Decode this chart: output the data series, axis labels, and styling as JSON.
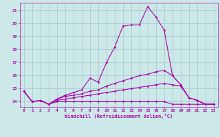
{
  "xlabel": "Windchill (Refroidissement éolien,°C)",
  "background_color": "#cce8e8",
  "grid_color": "#aacccc",
  "line_color": "#aa00aa",
  "x_ticks": [
    0,
    1,
    2,
    3,
    4,
    5,
    6,
    7,
    8,
    9,
    10,
    11,
    12,
    13,
    14,
    15,
    16,
    17,
    18,
    19,
    20,
    21,
    22,
    23
  ],
  "y_ticks": [
    14,
    15,
    16,
    17,
    18,
    19,
    20,
    21
  ],
  "ylim": [
    13.6,
    21.6
  ],
  "xlim": [
    -0.5,
    23.5
  ],
  "lines": [
    {
      "x": [
        0,
        1,
        2,
        3,
        4,
        5,
        6,
        7,
        8,
        9,
        10,
        11,
        12,
        13,
        14,
        15,
        16,
        17,
        18,
        19,
        20,
        21,
        22,
        23
      ],
      "y": [
        14.8,
        14.0,
        14.1,
        13.8,
        14.2,
        14.5,
        14.7,
        14.9,
        15.8,
        15.5,
        17.0,
        18.2,
        19.8,
        19.9,
        19.9,
        21.3,
        20.5,
        19.5,
        16.0,
        15.3,
        14.3,
        14.1,
        13.8,
        13.8
      ]
    },
    {
      "x": [
        0,
        1,
        2,
        3,
        4,
        5,
        6,
        7,
        8,
        9,
        10,
        11,
        12,
        13,
        14,
        15,
        16,
        17,
        18,
        19,
        20,
        21,
        22,
        23
      ],
      "y": [
        14.8,
        14.0,
        14.1,
        13.8,
        14.2,
        14.4,
        14.5,
        14.6,
        14.8,
        14.9,
        15.2,
        15.4,
        15.6,
        15.8,
        16.0,
        16.1,
        16.3,
        16.4,
        16.0,
        15.3,
        14.3,
        14.1,
        13.8,
        13.8
      ]
    },
    {
      "x": [
        0,
        1,
        2,
        3,
        4,
        5,
        6,
        7,
        8,
        9,
        10,
        11,
        12,
        13,
        14,
        15,
        16,
        17,
        18,
        19,
        20,
        21,
        22,
        23
      ],
      "y": [
        14.8,
        14.0,
        14.1,
        13.8,
        14.1,
        14.2,
        14.3,
        14.4,
        14.5,
        14.6,
        14.7,
        14.8,
        14.9,
        15.0,
        15.1,
        15.2,
        15.3,
        15.4,
        15.3,
        15.2,
        14.3,
        14.1,
        13.8,
        13.8
      ]
    },
    {
      "x": [
        0,
        1,
        2,
        3,
        4,
        5,
        6,
        7,
        8,
        9,
        10,
        11,
        12,
        13,
        14,
        15,
        16,
        17,
        18,
        19,
        20,
        21,
        22,
        23
      ],
      "y": [
        14.8,
        14.0,
        14.1,
        13.8,
        14.0,
        14.0,
        14.0,
        14.0,
        14.0,
        14.0,
        14.0,
        14.0,
        14.0,
        14.0,
        14.0,
        14.0,
        14.0,
        14.0,
        13.8,
        13.8,
        13.8,
        13.8,
        13.8,
        13.8
      ]
    }
  ]
}
